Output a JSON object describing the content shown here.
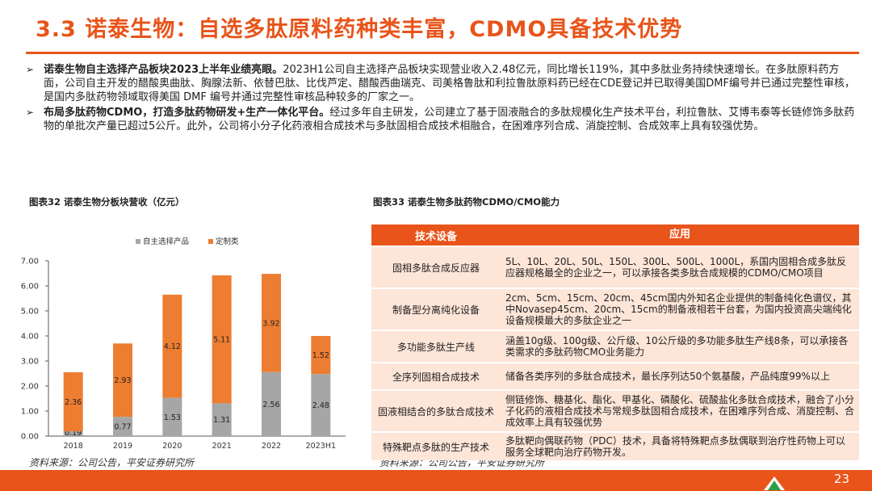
{
  "title": "3.3 诺泰生物：自选多肽原料药种类丰富，CDMO具备技术优势",
  "bullets": [
    {
      "bold": "诺泰生物自主选择产品板块2023上半年业绩亮眼。",
      "text": "2023H1公司自主选择产品板块实现营业收入2.48亿元，同比增长119%，其中多肽业务持续快速增长。在多肽原料药方面，公司自主开发的醋酸奥曲肽、胸腺法新、依替巴肽、比伐芦定、醋酸西曲瑞克、司美格鲁肽和利拉鲁肽原料药已经在CDE登记并已取得美国DMF编号并已通过完整性审核，是国内多肽药物领域取得美国 DMF 编号并通过完整性审核品种较多的厂家之一。"
    },
    {
      "bold": "布局多肽药物CDMO，打造多肽药物研发+生产一体化平台。",
      "text": "经过多年自主研发，公司建立了基于固液融合的多肽规模化生产技术平台，利拉鲁肽、艾博韦泰等长链修饰多肽药物的单批次产量已超过5公斤。此外，公司将小分子化药液相合成技术与多肽固相合成技术相融合，在困难序列合成、消旋控制、合成效率上具有较强优势。"
    }
  ],
  "fig32": {
    "title": "图表32 诺泰生物分板块营收（亿元）",
    "source": "资料来源：公司公告，平安证券研究所"
  },
  "fig33": {
    "title": "图表33 诺泰生物多肽药物CDMO/CMO能力",
    "source": "资料来源：公司公告，平安证券研究所"
  },
  "chart_data": {
    "type": "bar",
    "stacked": true,
    "categories": [
      "2018",
      "2019",
      "2020",
      "2021",
      "2022",
      "2023H1"
    ],
    "series": [
      {
        "name": "自主选择产品",
        "values": [
          0.19,
          0.77,
          1.53,
          1.31,
          2.56,
          2.48
        ],
        "color": "#a6a6a6"
      },
      {
        "name": "定制类",
        "values": [
          2.36,
          2.93,
          4.12,
          5.11,
          3.92,
          1.52
        ],
        "color": "#ed7d31"
      }
    ],
    "yticks": [
      "0.00",
      "1.00",
      "2.00",
      "3.00",
      "4.00",
      "5.00",
      "6.00",
      "7.00"
    ],
    "ylim": [
      0,
      7
    ],
    "legend": "top-center",
    "grid": false
  },
  "table": {
    "headers": [
      "技术设备",
      "应用"
    ],
    "rows": [
      {
        "name": "固相多肽合成反应器",
        "desc": "5L、10L、20L、50L、150L、300L、500L、1000L，系国内固相合成多肽反应器规格最全的企业之一，可以承接各类多肽合成规模的CDMO/CMO项目"
      },
      {
        "name": "制备型分离纯化设备",
        "desc": "2cm、5cm、15cm、20cm、45cm国内外知名企业提供的制备纯化色谱仪，其中Novasep45cm、20cm、15cm的制备液相若干台套，为国内投资高尖端纯化设备规模最大的多肽企业之一"
      },
      {
        "name": "多功能多肽生产线",
        "desc": "涵盖10g级、100g级、公斤级、10公斤级的多功能多肽生产线8条，可以承接各类需求的多肽药物CMO业务能力"
      },
      {
        "name": "全序列固相合成技术",
        "desc": "储备各类序列的多肽合成技术，最长序列达50个氨基酸，产品纯度99%以上"
      },
      {
        "name": "固液相结合的多肽合成技术",
        "desc": "侧链修饰、糖基化、酯化、甲基化、磷酸化、硫酸盐化多肽合成技术，融合了小分子化药的液相合成技术与常规多肽固相合成技术，在困难序列合成、消旋控制、合成效率上具有较强优势"
      },
      {
        "name": "特殊靶点多肽的生产技术",
        "desc": "多肽靶向偶联药物（PDC）技术，具备将特殊靶点多肽偶联到治疗性药物上可以服务全球靶向治疗药物开发。"
      }
    ]
  },
  "page_number": "23"
}
